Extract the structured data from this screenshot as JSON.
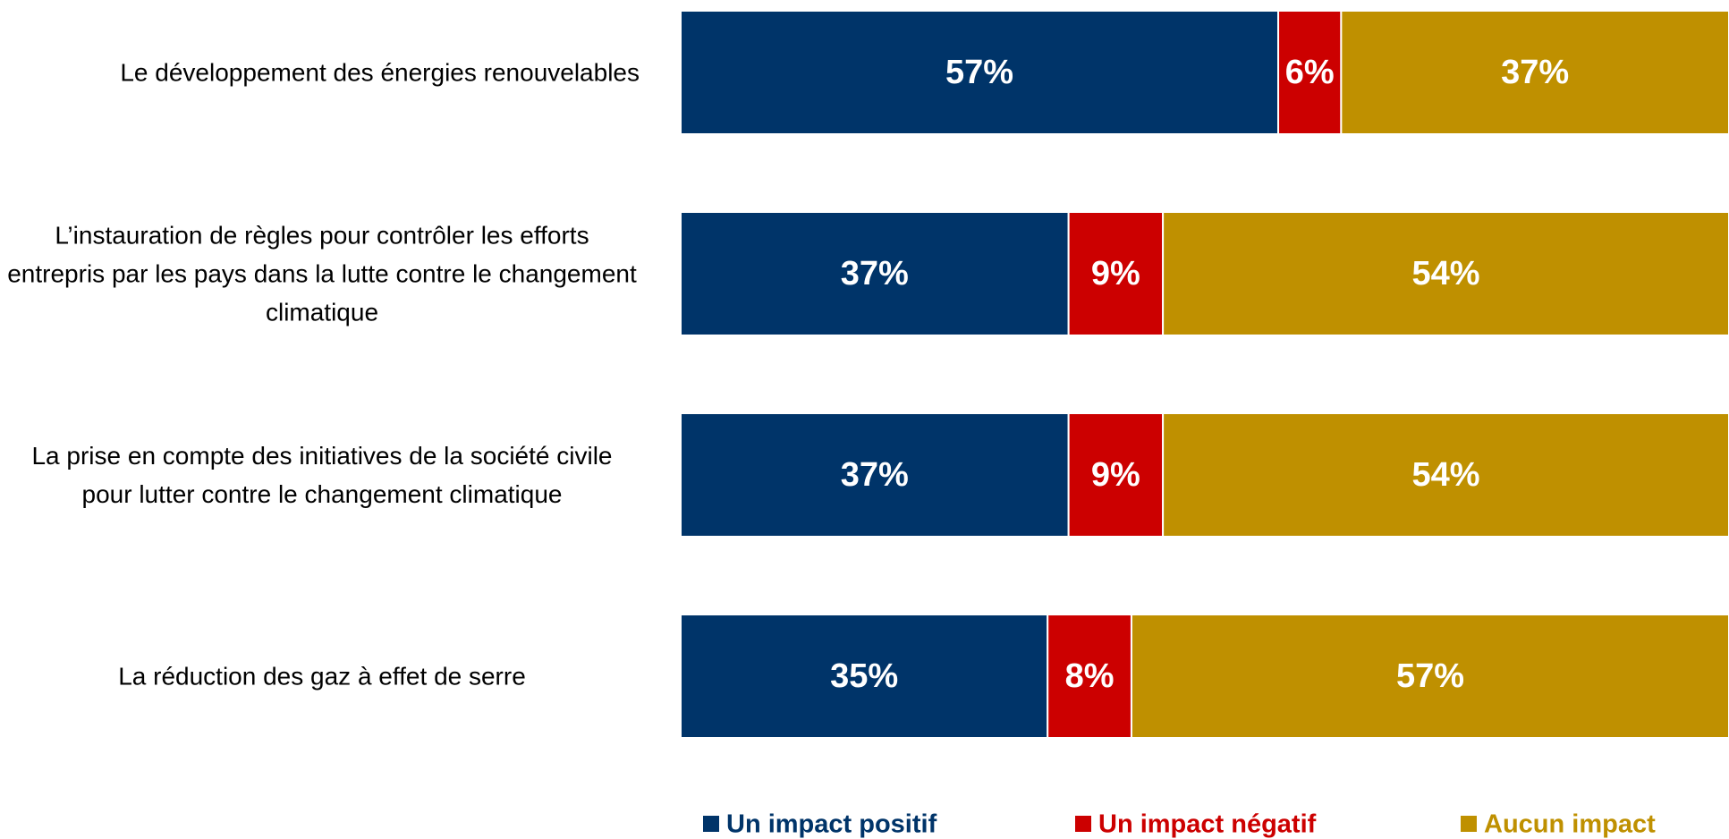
{
  "chart_data": {
    "type": "stacked_bar_horizontal",
    "categories": [
      "Le développement des énergies renouvelables",
      "L’instauration de règles pour contrôler les efforts entrepris par les pays dans la lutte contre le changement climatique",
      "La prise en compte des initiatives de la société civile pour lutter contre le changement climatique",
      "La réduction des gaz à effet de serre"
    ],
    "series": [
      {
        "name": "Un impact positif",
        "color": "#003469",
        "values": [
          57,
          37,
          37,
          35
        ],
        "value_labels": [
          "57%",
          "37%",
          "37%",
          "35%"
        ]
      },
      {
        "name": "Un impact négatif",
        "color": "#cc0000",
        "values": [
          6,
          9,
          9,
          8
        ],
        "value_labels": [
          "6%",
          "9%",
          "9%",
          "8%"
        ]
      },
      {
        "name": "Aucun impact",
        "color": "#bf9000",
        "values": [
          37,
          54,
          54,
          57
        ],
        "value_labels": [
          "37%",
          "54%",
          "54%",
          "57%"
        ]
      }
    ],
    "xlim": [
      0,
      100
    ],
    "legend": "bottom"
  }
}
